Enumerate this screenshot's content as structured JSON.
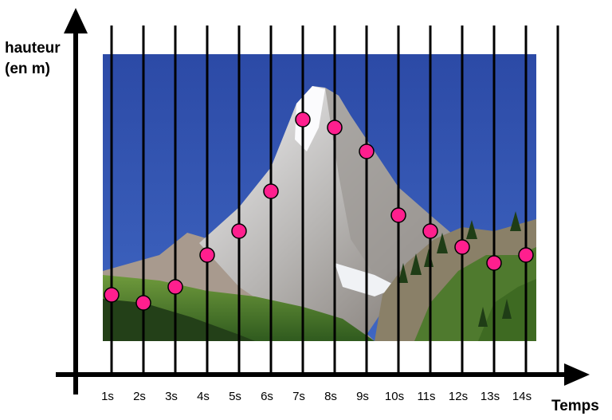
{
  "chart_data": {
    "type": "scatter",
    "ylabel_line1": "hauteur",
    "ylabel_line2": "(en m)",
    "xlabel": "Temps",
    "categories": [
      "1s",
      "2s",
      "3s",
      "4s",
      "5s",
      "6s",
      "7s",
      "8s",
      "9s",
      "10s",
      "11s",
      "12s",
      "13s",
      "14s"
    ],
    "x": [
      1,
      2,
      3,
      4,
      5,
      6,
      7,
      8,
      9,
      10,
      11,
      12,
      13,
      14
    ],
    "y": [
      10.0,
      9.0,
      11.0,
      15.0,
      18.0,
      23.0,
      32.0,
      31.0,
      28.0,
      20.0,
      18.0,
      16.0,
      14.0,
      15.0
    ],
    "ylim": [
      0,
      36
    ],
    "xlim": [
      0,
      14.5
    ],
    "grid": "vertical",
    "legend": "none",
    "background_image": "mountain-photo",
    "colors": {
      "marker_fill": "#ff1f8e",
      "marker_stroke": "#000000",
      "axis": "#000000",
      "sky": "#2f4fa8"
    }
  }
}
